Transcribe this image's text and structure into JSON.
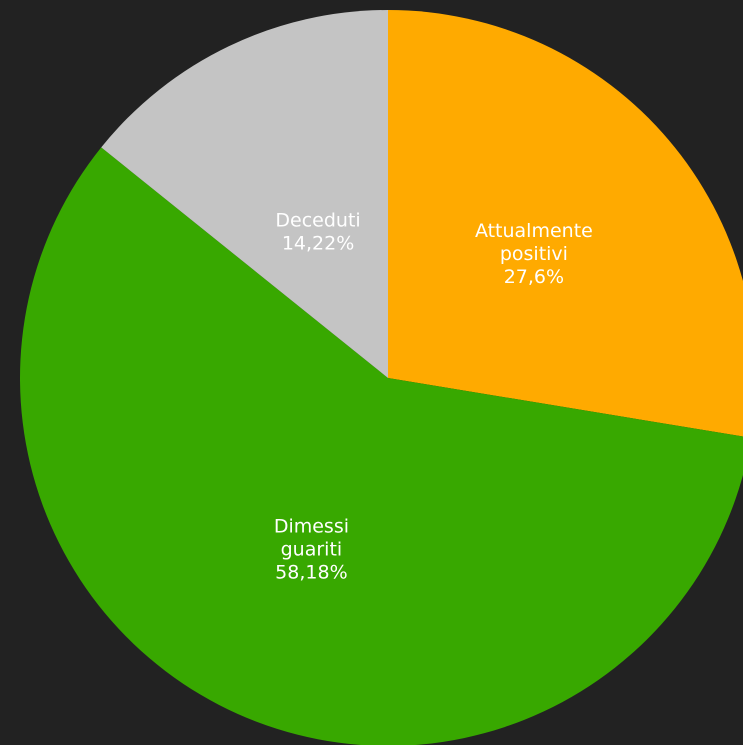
{
  "chart_data": {
    "type": "pie",
    "start_angle_deg": 0,
    "direction": "clockwise",
    "slices": [
      {
        "label_lines": [
          "Attualmente",
          "positivi"
        ],
        "value_label": "27,6%",
        "value": 27.6,
        "color": "#FFAA00"
      },
      {
        "label_lines": [
          "Dimessi",
          "guariti"
        ],
        "value_label": "58,18%",
        "value": 58.18,
        "color": "#38A800"
      },
      {
        "label_lines": [
          "Deceduti"
        ],
        "value_label": "14,22%",
        "value": 14.22,
        "color": "#C4C4C4"
      }
    ]
  },
  "colors": {
    "background": "#222222",
    "label_text": "#FFFFFF"
  }
}
